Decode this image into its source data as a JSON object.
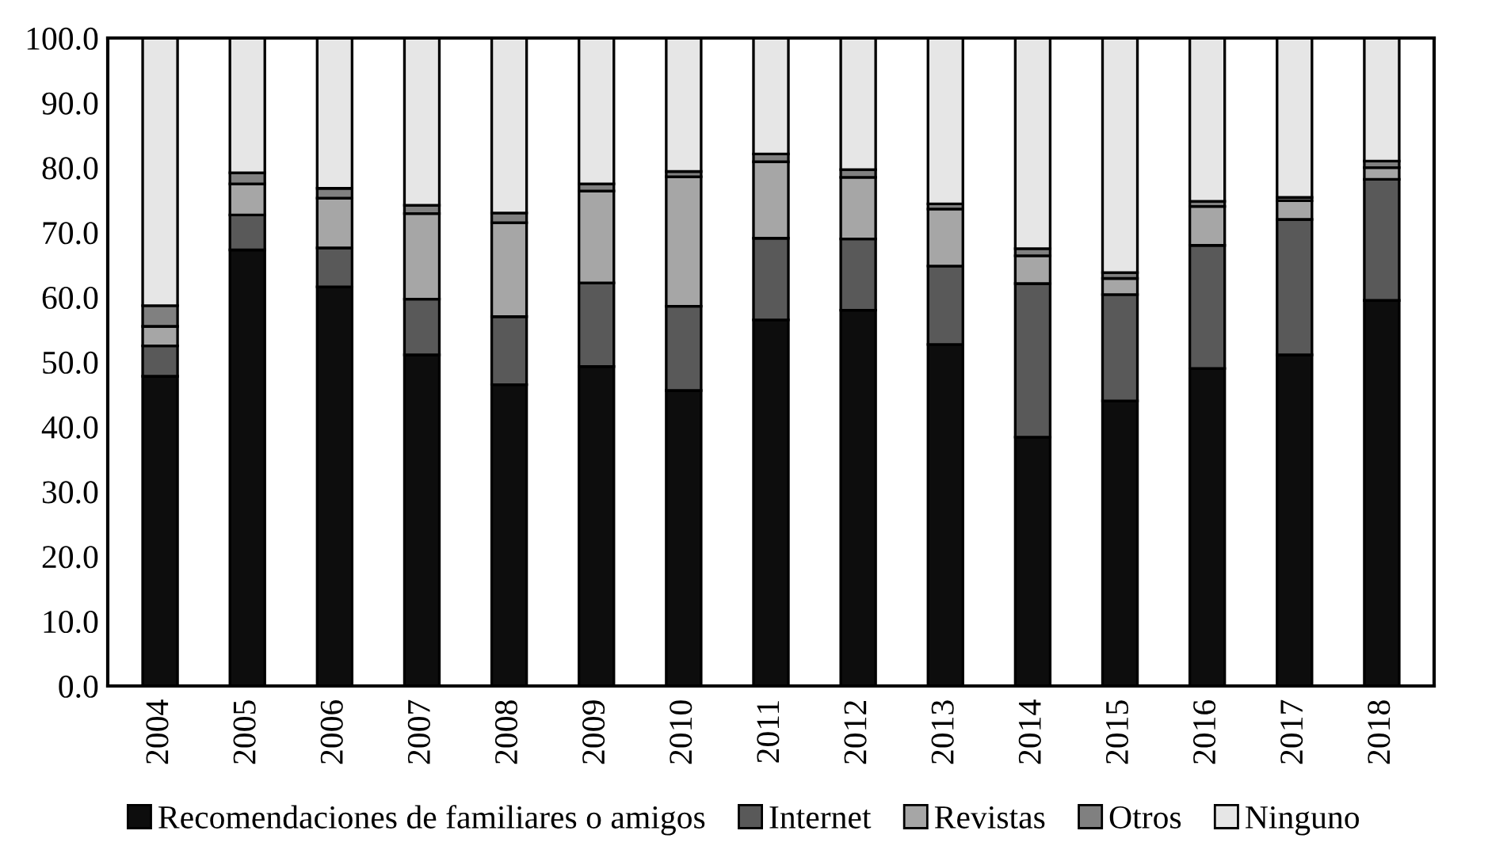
{
  "chart_data": {
    "type": "bar",
    "stacked": true,
    "categories": [
      "2004",
      "2005",
      "2006",
      "2007",
      "2008",
      "2009",
      "2010",
      "2011",
      "2012",
      "2013",
      "2014",
      "2015",
      "2016",
      "2017",
      "2018"
    ],
    "series": [
      {
        "name": "Recomendaciones de familiares o amigos",
        "color": "#0d0d0d",
        "values": [
          47.8,
          67.3,
          61.6,
          51.1,
          46.5,
          49.3,
          45.6,
          56.5,
          58.0,
          52.7,
          38.4,
          44.0,
          49.0,
          51.1,
          59.5
        ]
      },
      {
        "name": "Internet",
        "color": "#595959",
        "values": [
          4.7,
          5.4,
          6.0,
          8.6,
          10.5,
          12.9,
          13.0,
          12.6,
          11.0,
          12.1,
          23.7,
          16.4,
          19.0,
          20.9,
          18.7
        ]
      },
      {
        "name": "Revistas",
        "color": "#a6a6a6",
        "values": [
          3.0,
          4.8,
          7.7,
          13.2,
          14.5,
          14.2,
          20.0,
          11.8,
          9.5,
          8.8,
          4.3,
          2.5,
          6.0,
          2.9,
          1.8
        ]
      },
      {
        "name": "Otros",
        "color": "#808080",
        "values": [
          3.2,
          1.7,
          1.5,
          1.3,
          1.5,
          1.1,
          0.8,
          1.2,
          1.2,
          0.8,
          1.1,
          0.9,
          0.8,
          0.5,
          1.0
        ]
      },
      {
        "name": "Ninguno",
        "color": "#e6e6e6",
        "values": [
          41.3,
          20.8,
          23.2,
          25.8,
          27.0,
          22.5,
          20.6,
          17.9,
          20.3,
          25.6,
          32.5,
          36.2,
          25.2,
          24.6,
          19.0
        ]
      }
    ],
    "ylim": [
      0,
      100
    ],
    "yticks": [
      {
        "value": 0,
        "label": "0.0"
      },
      {
        "value": 10,
        "label": "10.0"
      },
      {
        "value": 20,
        "label": "20.0"
      },
      {
        "value": 30,
        "label": "30.0"
      },
      {
        "value": 40,
        "label": "40.0"
      },
      {
        "value": 50,
        "label": "50.0"
      },
      {
        "value": 60,
        "label": "60.0"
      },
      {
        "value": 70,
        "label": "70.0"
      },
      {
        "value": 80,
        "label": "80.0"
      },
      {
        "value": 90,
        "label": "90.0"
      },
      {
        "value": 100,
        "label": "100.0"
      }
    ],
    "grid": false,
    "legend": "bottom"
  }
}
